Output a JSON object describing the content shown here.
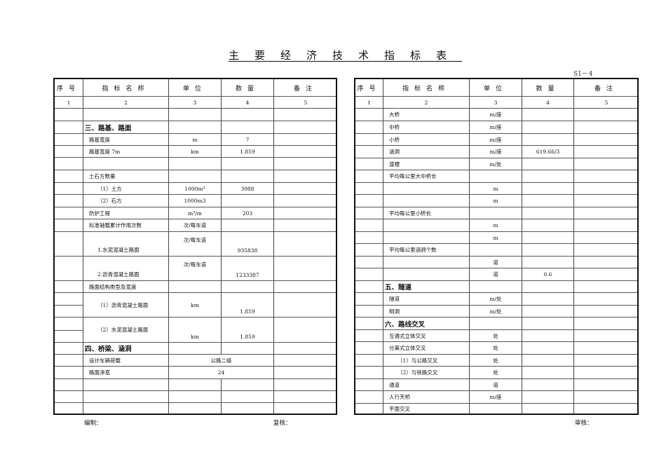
{
  "title": "主要经济技术指标表",
  "form_code": "SⅠ－4",
  "headers": [
    "序号",
    "指标名称",
    "单位",
    "数量",
    "备注"
  ],
  "column_numbers": [
    "1",
    "2",
    "3",
    "4",
    "5"
  ],
  "left_rows": [
    {
      "name": "",
      "unit": "",
      "qty": ""
    },
    {
      "name": "三、路基、路面",
      "unit": "",
      "qty": "",
      "section": true
    },
    {
      "name": "路基宽度",
      "unit": "m",
      "qty": "7"
    },
    {
      "name": "路基宽度 7m",
      "unit": "km",
      "qty": "1.859"
    },
    {
      "name": "",
      "unit": "",
      "qty": ""
    },
    {
      "name": "土石方数量",
      "unit": "",
      "qty": ""
    },
    {
      "name": "（1）土方",
      "unit": "1000m³",
      "qty": "3988",
      "indent": true
    },
    {
      "name": "（2）石方",
      "unit": "1000m3",
      "qty": "",
      "indent": true
    },
    {
      "name": "防护工程",
      "unit": "m³/m",
      "qty": "203"
    },
    {
      "name": "标准轴载累计作用次数",
      "unit": "次/每车道",
      "qty": ""
    },
    {
      "name": "1.水泥混凝土路面",
      "unit": "次/每车道",
      "qty": "935838",
      "indent": true
    },
    {
      "name": "2.沥青混凝土路面",
      "unit": "次/每车道",
      "qty": "1233387",
      "indent": true
    },
    {
      "name": "路面结构类型及宽度",
      "unit": "",
      "qty": ""
    },
    {
      "name": "（1）沥青混凝土路面",
      "unit": "km",
      "qty": "1.859",
      "indent": true
    },
    {
      "name": "（2）水泥混凝土路面",
      "unit": "km",
      "qty": "1.859",
      "indent": true
    },
    {
      "name": "四、桥梁、涵洞",
      "unit": "",
      "qty": "",
      "section": true
    },
    {
      "name": "设计车辆荷载",
      "merged": "公路二级"
    },
    {
      "name": "路面净宽",
      "merged": "24"
    },
    {
      "name": "",
      "unit": "",
      "qty": ""
    },
    {
      "name": "",
      "unit": "",
      "qty": ""
    },
    {
      "name": "",
      "unit": "",
      "qty": ""
    }
  ],
  "right_rows": [
    {
      "name": "大桥",
      "unit": "m/座",
      "qty": ""
    },
    {
      "name": "中桥",
      "unit": "m/座",
      "qty": ""
    },
    {
      "name": "小桥",
      "unit": "m/座",
      "qty": ""
    },
    {
      "name": "涵洞",
      "unit": "m/座",
      "qty": "619.66/3"
    },
    {
      "name": "渡槽",
      "unit": "m/处",
      "qty": ""
    },
    {
      "name": "平均每公里大中桥长",
      "unit": "",
      "qty": ""
    },
    {
      "name": "",
      "unit": "m",
      "qty": ""
    },
    {
      "name": "",
      "unit": "m",
      "qty": ""
    },
    {
      "name": "平均每公里小桥长",
      "unit": "",
      "qty": ""
    },
    {
      "name": "",
      "unit": "m",
      "qty": ""
    },
    {
      "name": "",
      "unit": "m",
      "qty": ""
    },
    {
      "name": "平均每公里涵洞个数",
      "unit": "",
      "qty": ""
    },
    {
      "name": "",
      "unit": "道",
      "qty": ""
    },
    {
      "name": "",
      "unit": "道",
      "qty": "0.6"
    },
    {
      "name": "五、隧道",
      "unit": "",
      "qty": "",
      "section": true
    },
    {
      "name": "隧道",
      "unit": "m/处",
      "qty": ""
    },
    {
      "name": "明洞",
      "unit": "m/处",
      "qty": ""
    },
    {
      "name": "六、路线交叉",
      "unit": "",
      "qty": "",
      "section": true
    },
    {
      "name": "互通式立体交叉",
      "unit": "处",
      "qty": ""
    },
    {
      "name": "分离式立体交叉",
      "unit": "处",
      "qty": ""
    },
    {
      "name": "（1）与公路交叉",
      "unit": "处",
      "qty": "",
      "indent": true
    },
    {
      "name": "（2）与铁路交叉",
      "unit": "处",
      "qty": "",
      "indent": true
    },
    {
      "name": "通道",
      "unit": "道",
      "qty": ""
    },
    {
      "name": "人行天桥",
      "unit": "m/座",
      "qty": ""
    },
    {
      "name": "平面交叉",
      "unit": "",
      "qty": ""
    }
  ],
  "footer": {
    "compiled": "编制：",
    "checked": "复核：",
    "reviewed": "审核："
  }
}
